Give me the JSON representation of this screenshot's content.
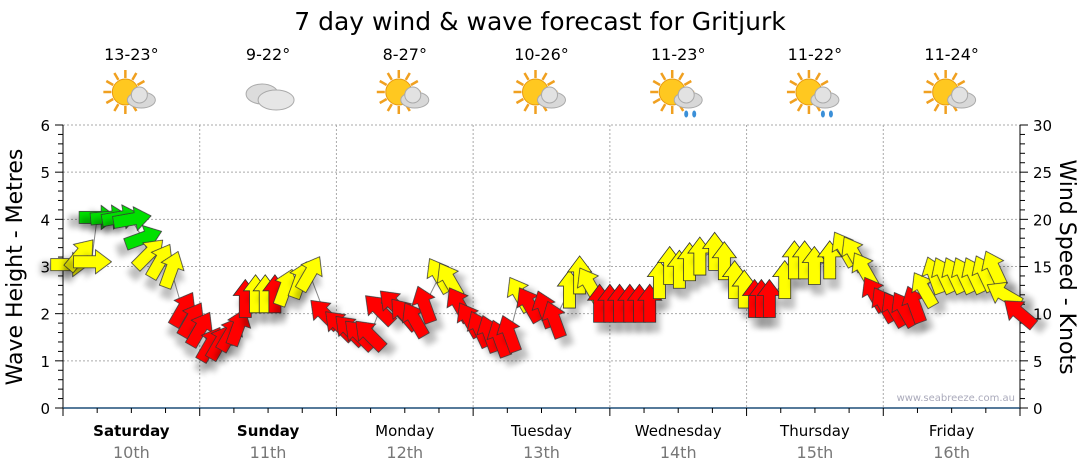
{
  "chart_data": {
    "type": "scatter",
    "title": "7 day wind & wave forecast for Gritjurk",
    "ylabel": "Wave Height - Metres",
    "y2label": "Wind Speed - Knots",
    "ylim": [
      0,
      6
    ],
    "y2lim": [
      0,
      30
    ],
    "yticks": [
      "0",
      "1",
      "2",
      "3",
      "4",
      "5",
      "6"
    ],
    "y2ticks": [
      "0",
      "5",
      "10",
      "15",
      "20",
      "25",
      "30"
    ],
    "watermark": "www.seabreeze.com.au",
    "x_unit": "hours from Saturday 00:00",
    "days": [
      {
        "name": "Saturday",
        "date": "10th",
        "temp": "13-23°",
        "icon": "sun-cloud",
        "bold": true
      },
      {
        "name": "Sunday",
        "date": "11th",
        "temp": "9-22°",
        "icon": "cloud",
        "bold": true
      },
      {
        "name": "Monday",
        "date": "12th",
        "temp": "8-27°",
        "icon": "sun-cloud",
        "bold": false
      },
      {
        "name": "Tuesday",
        "date": "13th",
        "temp": "10-26°",
        "icon": "sun-cloud",
        "bold": false
      },
      {
        "name": "Wednesday",
        "date": "14th",
        "temp": "11-23°",
        "icon": "sun-cloud-rain",
        "bold": false
      },
      {
        "name": "Thursday",
        "date": "15th",
        "temp": "11-22°",
        "icon": "sun-cloud-rain",
        "bold": false
      },
      {
        "name": "Friday",
        "date": "16th",
        "temp": "11-24°",
        "icon": "sun-cloud",
        "bold": false
      }
    ],
    "colors": {
      "g": "#00e000",
      "y": "#ffff00",
      "r": "#ff0000"
    },
    "series_fields": [
      "hour",
      "wind_knots",
      "direction_deg",
      "color_band"
    ],
    "wind_arrows": [
      [
        1,
        15.2,
        90,
        "y"
      ],
      [
        3,
        16.2,
        40,
        "y"
      ],
      [
        5,
        15.5,
        90,
        "y"
      ],
      [
        6,
        20.2,
        90,
        "g"
      ],
      [
        8,
        20.2,
        85,
        "g"
      ],
      [
        10,
        20.2,
        80,
        "g"
      ],
      [
        12,
        20,
        80,
        "g"
      ],
      [
        14,
        18,
        70,
        "g"
      ],
      [
        15,
        16.3,
        45,
        "y"
      ],
      [
        17,
        15.5,
        30,
        "y"
      ],
      [
        19,
        14.6,
        20,
        "y"
      ],
      [
        21,
        10.4,
        30,
        "r"
      ],
      [
        22.5,
        9.3,
        30,
        "r"
      ],
      [
        24,
        8.3,
        30,
        "r"
      ],
      [
        25.8,
        6.7,
        30,
        "r"
      ],
      [
        27.5,
        6.9,
        30,
        "r"
      ],
      [
        29.3,
        7.8,
        30,
        "r"
      ],
      [
        30.7,
        8.5,
        20,
        "r"
      ],
      [
        32,
        11.5,
        0,
        "r"
      ],
      [
        33.8,
        12,
        0,
        "y"
      ],
      [
        35.5,
        12,
        0,
        "y"
      ],
      [
        37.2,
        12,
        0,
        "r"
      ],
      [
        39,
        12.7,
        20,
        "y"
      ],
      [
        41.6,
        13.5,
        20,
        "y"
      ],
      [
        43.3,
        14.2,
        30,
        "y"
      ],
      [
        46,
        9.9,
        315,
        "r"
      ],
      [
        48.6,
        8.7,
        315,
        "r"
      ],
      [
        50.4,
        8.2,
        315,
        "r"
      ],
      [
        52.1,
        7.7,
        315,
        "r"
      ],
      [
        53.9,
        7.7,
        315,
        "r"
      ],
      [
        55.6,
        10.4,
        315,
        "r"
      ],
      [
        58.2,
        10.9,
        315,
        "r"
      ],
      [
        60,
        9.9,
        320,
        "r"
      ],
      [
        61.8,
        9.3,
        330,
        "r"
      ],
      [
        63.5,
        10.9,
        340,
        "r"
      ],
      [
        66.1,
        14,
        330,
        "y"
      ],
      [
        67.9,
        13.5,
        330,
        "y"
      ],
      [
        69.6,
        10.9,
        330,
        "r"
      ],
      [
        71.4,
        9.3,
        330,
        "r"
      ],
      [
        73.2,
        8.3,
        335,
        "r"
      ],
      [
        74.9,
        7.8,
        340,
        "r"
      ],
      [
        76.7,
        7.3,
        340,
        "r"
      ],
      [
        78.4,
        7.8,
        340,
        "r"
      ],
      [
        80.2,
        12,
        330,
        "y"
      ],
      [
        81.9,
        10.9,
        330,
        "r"
      ],
      [
        84.6,
        10.4,
        340,
        "r"
      ],
      [
        86.3,
        9.3,
        340,
        "r"
      ],
      [
        88.9,
        12.5,
        0,
        "y"
      ],
      [
        90.7,
        14,
        0,
        "y"
      ],
      [
        92.5,
        13,
        330,
        "y"
      ],
      [
        94.2,
        11,
        0,
        "r"
      ],
      [
        96,
        11,
        0,
        "r"
      ],
      [
        97.7,
        11,
        0,
        "r"
      ],
      [
        99.5,
        11,
        0,
        "r"
      ],
      [
        101.2,
        11,
        0,
        "r"
      ],
      [
        103,
        11,
        0,
        "r"
      ],
      [
        104.7,
        13.5,
        0,
        "y"
      ],
      [
        106.5,
        15,
        0,
        "y"
      ],
      [
        108.2,
        14.6,
        0,
        "y"
      ],
      [
        110,
        15.4,
        0,
        "y"
      ],
      [
        111.8,
        16,
        0,
        "y"
      ],
      [
        114.4,
        16.5,
        0,
        "y"
      ],
      [
        116.1,
        15.5,
        0,
        "y"
      ],
      [
        117.9,
        13.5,
        0,
        "y"
      ],
      [
        119.6,
        12.5,
        0,
        "y"
      ],
      [
        121.4,
        11.5,
        0,
        "r"
      ],
      [
        122.6,
        11.5,
        0,
        "r"
      ],
      [
        124,
        11.5,
        0,
        "r"
      ],
      [
        126.7,
        13.5,
        0,
        "y"
      ],
      [
        128.4,
        15.6,
        0,
        "y"
      ],
      [
        130.2,
        15.6,
        0,
        "y"
      ],
      [
        131.9,
        15,
        0,
        "y"
      ],
      [
        134.6,
        15.6,
        0,
        "y"
      ],
      [
        137.2,
        16.8,
        330,
        "y"
      ],
      [
        138.9,
        16.3,
        330,
        "y"
      ],
      [
        140.7,
        14.6,
        330,
        "y"
      ],
      [
        142.5,
        12,
        330,
        "r"
      ],
      [
        144.2,
        10.9,
        330,
        "r"
      ],
      [
        146,
        10.4,
        330,
        "r"
      ],
      [
        147.7,
        10.4,
        330,
        "r"
      ],
      [
        149.5,
        10.9,
        340,
        "r"
      ],
      [
        151.2,
        12.5,
        330,
        "y"
      ],
      [
        153,
        14,
        340,
        "y"
      ],
      [
        154.7,
        14,
        335,
        "y"
      ],
      [
        156.5,
        14,
        335,
        "y"
      ],
      [
        158.2,
        14,
        335,
        "y"
      ],
      [
        160,
        14,
        335,
        "y"
      ],
      [
        161.8,
        14.2,
        335,
        "y"
      ],
      [
        163.5,
        14.7,
        335,
        "y"
      ],
      [
        165.3,
        12,
        300,
        "y"
      ],
      [
        168,
        10,
        310,
        "r"
      ]
    ]
  }
}
